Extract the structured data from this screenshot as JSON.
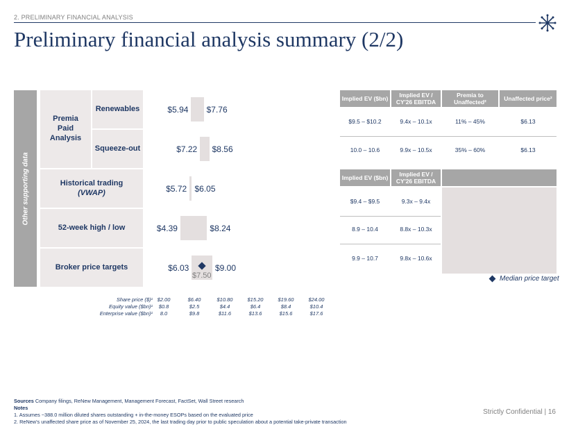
{
  "header": {
    "section": "2. PRELIMINARY FINANCIAL ANALYSIS",
    "title": "Preliminary financial analysis summary (2/2)"
  },
  "colors": {
    "navy": "#1f3864",
    "grey": "#a6a6a6",
    "light": "#ede9e9",
    "bar": "#e4dfdf"
  },
  "side_label": "Other supporting data",
  "rows": {
    "premia_group": "Premia Paid Analysis",
    "renewables": "Renewables",
    "squeeze_out": "Squeeze-out",
    "historical": "Historical trading",
    "historical_sub": "(VWAP)",
    "week52": "52-week high / low",
    "broker": "Broker price targets"
  },
  "chart_data": {
    "type": "football-field",
    "x_axis_unit": "Share price ($)",
    "xlim": [
      2.0,
      24.0
    ],
    "bars": [
      {
        "name": "Renewables",
        "low": 5.94,
        "high": 7.76,
        "low_label": "$5.94",
        "high_label": "$7.76"
      },
      {
        "name": "Squeeze-out",
        "low": 7.22,
        "high": 8.56,
        "low_label": "$7.22",
        "high_label": "$8.56"
      },
      {
        "name": "Historical trading (VWAP)",
        "low": 5.72,
        "high": 6.05,
        "low_label": "$5.72",
        "high_label": "$6.05"
      },
      {
        "name": "52-week high / low",
        "low": 4.39,
        "high": 8.24,
        "low_label": "$4.39",
        "high_label": "$8.24"
      },
      {
        "name": "Broker price targets",
        "low": 6.03,
        "high": 9.0,
        "low_label": "$6.03",
        "high_label": "$9.00",
        "median": 7.5,
        "median_label": "$7.50"
      }
    ],
    "axis_rows": [
      {
        "label": "Share price ($)¹",
        "ticks": [
          "$2.00",
          "$6.40",
          "$10.80",
          "$15.20",
          "$19.60",
          "$24.00"
        ]
      },
      {
        "label": "Equity value ($bn)¹",
        "ticks": [
          "$0.8",
          "$2.5",
          "$4.4",
          "$6.4",
          "$8.4",
          "$10.4"
        ]
      },
      {
        "label": "Enterprise value ($bn)¹",
        "ticks": [
          "8.0",
          "$9.8",
          "$11.6",
          "$13.6",
          "$15.6",
          "$17.6"
        ]
      }
    ]
  },
  "table1": {
    "headers": [
      "Implied EV ($bn)",
      "Implied EV / CY'26 EBITDA",
      "Premia to Unaffected²",
      "Unaffected price²"
    ],
    "rows": [
      [
        "$9.5 – $10.2",
        "9.4x – 10.1x",
        "11% – 45%",
        "$6.13"
      ],
      [
        "10.0 – 10.6",
        "9.9x – 10.5x",
        "35% – 60%",
        "$6.13"
      ]
    ]
  },
  "table2": {
    "headers": [
      "Implied EV ($bn)",
      "Implied EV / CY'26 EBITDA"
    ],
    "rows": [
      [
        "$9.4 – $9.5",
        "9.3x – 9.4x"
      ],
      [
        "8.9 – 10.4",
        "8.8x – 10.3x"
      ],
      [
        "9.9 – 10.7",
        "9.8x – 10.6x"
      ]
    ]
  },
  "legend": "Median price target",
  "footer": {
    "sources_label": "Sources",
    "sources_text": " Company filings, ReNew Management, Management Forecast, FactSet, Wall Street research",
    "notes_label": "Notes",
    "note1": "1.    Assumes ~388.0 million diluted shares outstanding + in-the-money ESOPs based on the evaluated price",
    "note2": "2.    ReNew’s unaffected share price as of November 25, 2024, the last trading day prior to public speculation about a potential take-private transaction",
    "confidential": "Strictly Confidential | 16"
  }
}
